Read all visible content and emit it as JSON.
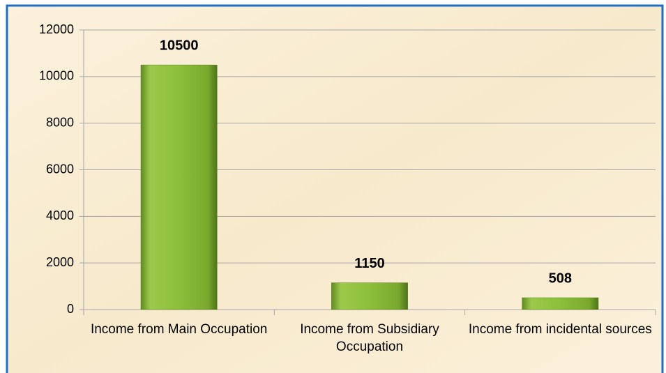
{
  "chart_data": {
    "type": "bar",
    "categories": [
      "Income from Main Occupation",
      "Income from Subsidiary Occupation",
      "Income from incidental sources"
    ],
    "values": [
      10500,
      1150,
      508
    ],
    "color": "#8cbf3a",
    "ylim": [
      0,
      12000
    ],
    "yticks": [
      0,
      2000,
      4000,
      6000,
      8000,
      10000,
      12000
    ],
    "grid": true
  }
}
